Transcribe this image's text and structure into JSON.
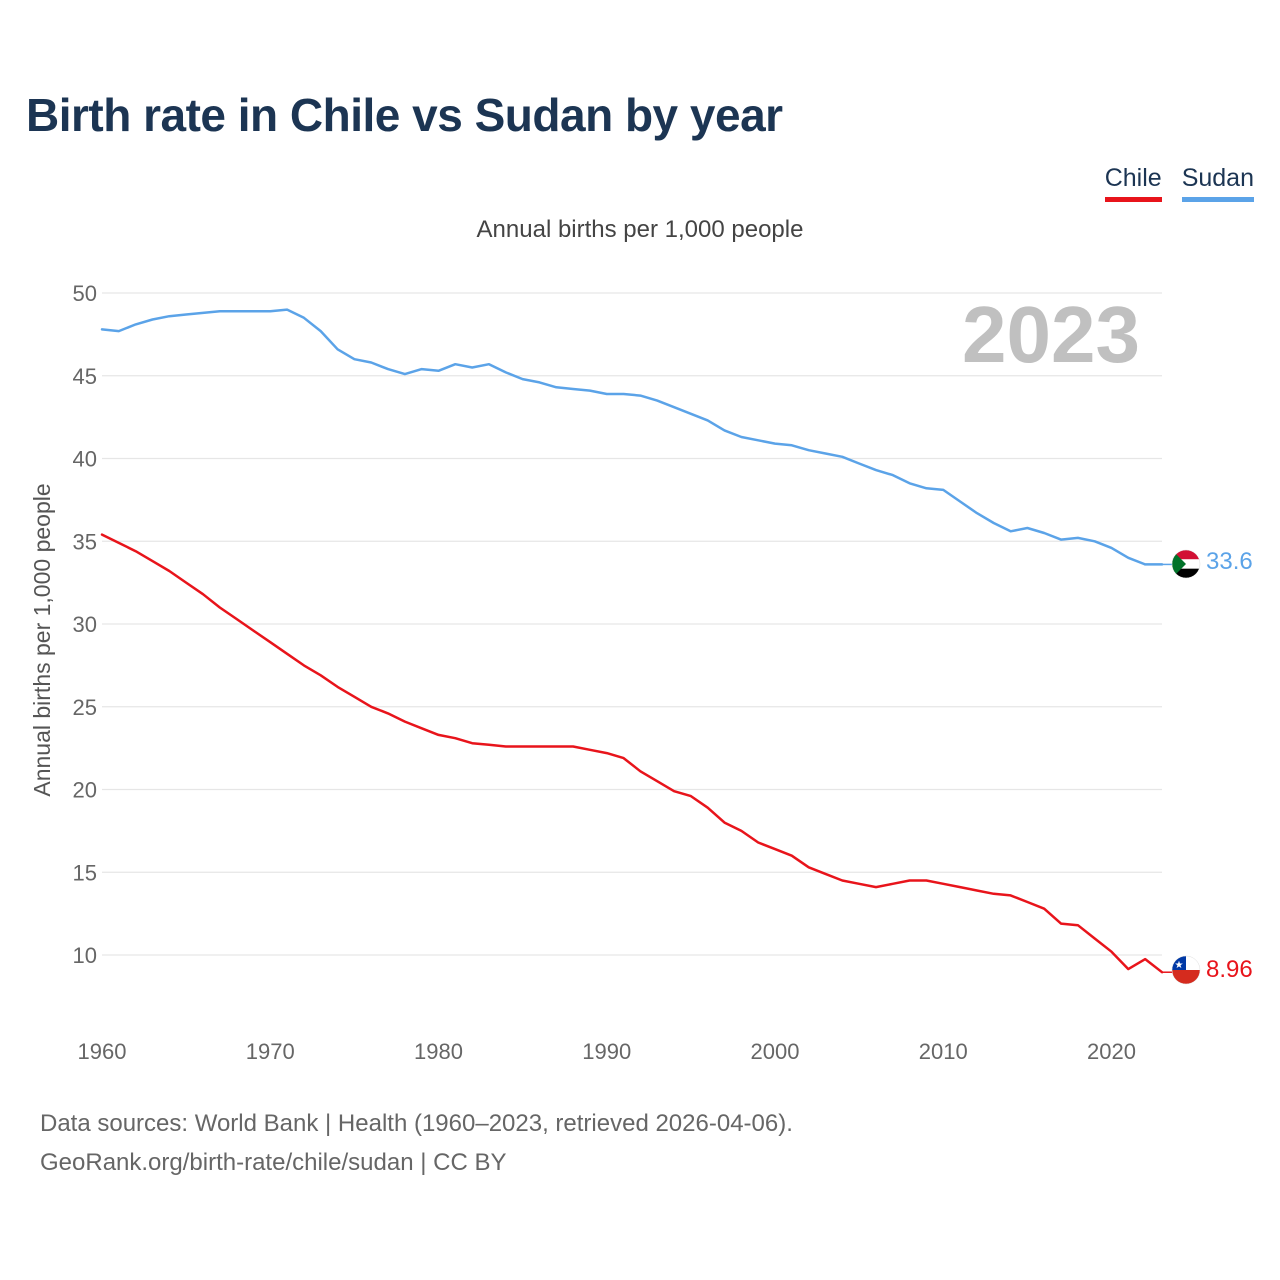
{
  "title": "Birth rate in Chile vs Sudan by year",
  "legend": {
    "chile": "Chile",
    "sudan": "Sudan"
  },
  "subtitle": "Annual births per 1,000 people",
  "footer": {
    "line1": "Data sources: World Bank | Health (1960–2023, retrieved 2026-04-06).",
    "line2": "GeoRank.org/birth-rate/chile/sudan | CC BY"
  },
  "colors": {
    "chile": "#e8141b",
    "sudan": "#5ba3e8",
    "title": "#1c3553"
  },
  "chart_data": {
    "type": "line",
    "title": "Birth rate in Chile vs Sudan by year",
    "xlabel": "",
    "ylabel": "Annual births per 1,000 people",
    "year_label": "2023",
    "xlim": [
      1960,
      2023
    ],
    "ylim": [
      6,
      50
    ],
    "x_ticks": [
      1960,
      1970,
      1980,
      1990,
      2000,
      2010,
      2020
    ],
    "y_ticks": [
      10,
      15,
      20,
      25,
      30,
      35,
      40,
      45,
      50
    ],
    "grid": true,
    "x": [
      1960,
      1961,
      1962,
      1963,
      1964,
      1965,
      1966,
      1967,
      1968,
      1969,
      1970,
      1971,
      1972,
      1973,
      1974,
      1975,
      1976,
      1977,
      1978,
      1979,
      1980,
      1981,
      1982,
      1983,
      1984,
      1985,
      1986,
      1987,
      1988,
      1989,
      1990,
      1991,
      1992,
      1993,
      1994,
      1995,
      1996,
      1997,
      1998,
      1999,
      2000,
      2001,
      2002,
      2003,
      2004,
      2005,
      2006,
      2007,
      2008,
      2009,
      2010,
      2011,
      2012,
      2013,
      2014,
      2015,
      2016,
      2017,
      2018,
      2019,
      2020,
      2021,
      2022,
      2023
    ],
    "series": [
      {
        "name": "Chile",
        "color": "#e8141b",
        "end_label": "8.96",
        "flag": "chile-flag",
        "values": [
          35.4,
          34.9,
          34.4,
          33.8,
          33.2,
          32.5,
          31.8,
          31.0,
          30.3,
          29.6,
          28.9,
          28.2,
          27.5,
          26.9,
          26.2,
          25.6,
          25.0,
          24.6,
          24.1,
          23.7,
          23.3,
          23.1,
          22.8,
          22.7,
          22.6,
          22.6,
          22.6,
          22.6,
          22.6,
          22.4,
          22.2,
          21.9,
          21.1,
          20.5,
          19.9,
          19.6,
          18.9,
          18.0,
          17.5,
          16.8,
          16.4,
          16.0,
          15.3,
          14.9,
          14.5,
          14.3,
          14.1,
          14.3,
          14.5,
          14.5,
          14.3,
          14.1,
          13.9,
          13.7,
          13.6,
          13.2,
          12.8,
          11.9,
          11.8,
          11.0,
          10.2,
          9.15,
          9.75,
          8.96
        ]
      },
      {
        "name": "Sudan",
        "color": "#5ba3e8",
        "end_label": "33.6",
        "flag": "sudan-flag",
        "values": [
          47.8,
          47.7,
          48.1,
          48.4,
          48.6,
          48.7,
          48.8,
          48.9,
          48.9,
          48.9,
          48.9,
          49.0,
          48.5,
          47.7,
          46.6,
          46.0,
          45.8,
          45.4,
          45.1,
          45.4,
          45.3,
          45.7,
          45.5,
          45.7,
          45.2,
          44.8,
          44.6,
          44.3,
          44.2,
          44.1,
          43.9,
          43.9,
          43.8,
          43.5,
          43.1,
          42.7,
          42.3,
          41.7,
          41.3,
          41.1,
          40.9,
          40.8,
          40.5,
          40.3,
          40.1,
          39.7,
          39.3,
          39.0,
          38.5,
          38.2,
          38.1,
          37.4,
          36.7,
          36.1,
          35.6,
          35.8,
          35.5,
          35.1,
          35.2,
          35.0,
          34.6,
          34.0,
          33.6,
          33.6
        ]
      }
    ]
  }
}
